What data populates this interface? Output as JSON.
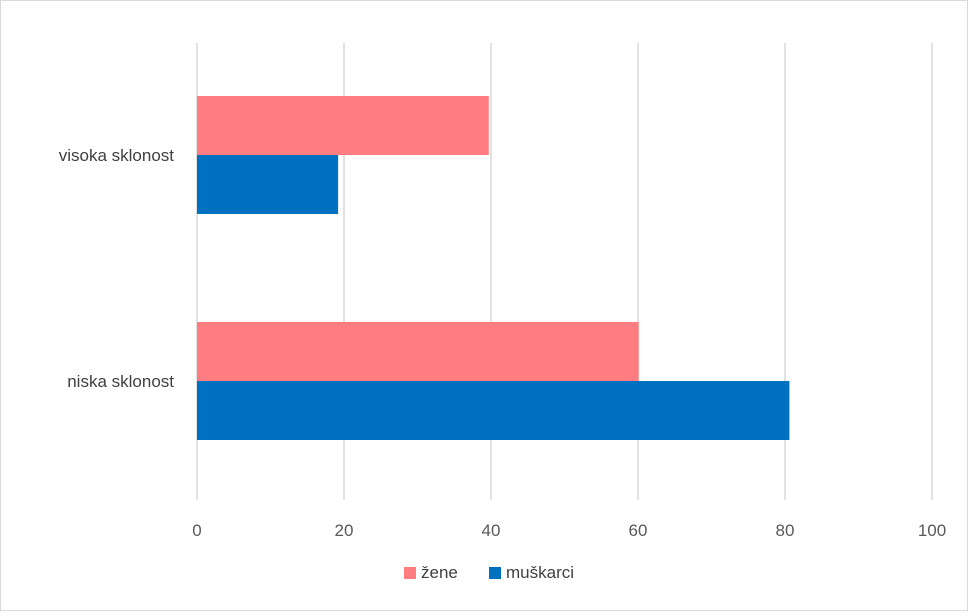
{
  "chart_data": {
    "type": "bar",
    "orientation": "horizontal",
    "categories": [
      "niska sklonost",
      "visoka sklonost"
    ],
    "series": [
      {
        "name": "žene",
        "color": "#FF7C80",
        "values": [
          60.1,
          39.7
        ]
      },
      {
        "name": "muškarci",
        "color": "#0070C0",
        "values": [
          80.6,
          19.2
        ]
      }
    ],
    "xlim": [
      0,
      100
    ],
    "xticks": [
      0,
      20,
      40,
      60,
      80,
      100
    ],
    "grid": "vertical",
    "legend_position": "bottom"
  }
}
